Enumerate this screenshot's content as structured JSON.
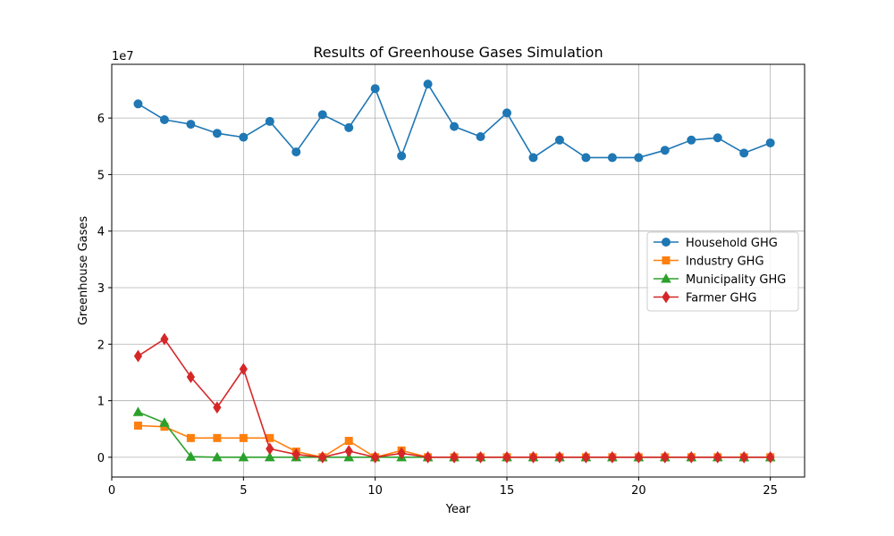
{
  "chart_data": {
    "type": "line",
    "title": "Results of Greenhouse Gases Simulation",
    "xlabel": "Year",
    "ylabel": "Greenhouse Gases",
    "y_offset_label": "1e7",
    "xlim": [
      0,
      26.3
    ],
    "ylim": [
      -0.35,
      6.95
    ],
    "y_scale_note": "values in units of 1e7",
    "x_ticks": [
      0,
      5,
      10,
      15,
      20,
      25
    ],
    "x_tick_labels": [
      "0",
      "5",
      "10",
      "15",
      "20",
      "25"
    ],
    "y_ticks": [
      0,
      1,
      2,
      3,
      4,
      5,
      6
    ],
    "y_tick_labels": [
      "0",
      "1",
      "2",
      "3",
      "4",
      "5",
      "6"
    ],
    "grid": true,
    "legend_position": "center-right",
    "x": [
      1,
      2,
      3,
      4,
      5,
      6,
      7,
      8,
      9,
      10,
      11,
      12,
      13,
      14,
      15,
      16,
      17,
      18,
      19,
      20,
      21,
      22,
      23,
      24,
      25
    ],
    "series": [
      {
        "name": "Household GHG",
        "color": "#1f77b4",
        "marker": "circle",
        "values": [
          6.25,
          5.97,
          5.89,
          5.73,
          5.66,
          5.94,
          5.4,
          6.06,
          5.83,
          6.52,
          5.33,
          6.6,
          5.85,
          5.67,
          6.09,
          5.3,
          5.61,
          5.3,
          5.3,
          5.3,
          5.43,
          5.61,
          5.65,
          5.38,
          5.56
        ]
      },
      {
        "name": "Industry GHG",
        "color": "#ff7f0e",
        "marker": "square",
        "values": [
          0.56,
          0.54,
          0.34,
          0.34,
          0.34,
          0.34,
          0.1,
          0.0,
          0.29,
          0.0,
          0.12,
          0.0,
          0.0,
          0.0,
          0.0,
          0.0,
          0.0,
          0.0,
          0.0,
          0.0,
          0.0,
          0.0,
          0.0,
          0.0,
          0.0
        ]
      },
      {
        "name": "Municipality GHG",
        "color": "#2ca02c",
        "marker": "triangle",
        "values": [
          0.8,
          0.61,
          0.01,
          0.0,
          0.0,
          0.0,
          0.0,
          0.0,
          0.0,
          0.0,
          0.0,
          0.0,
          0.0,
          0.0,
          0.0,
          0.0,
          0.0,
          0.0,
          0.0,
          0.0,
          0.0,
          0.0,
          0.0,
          0.0,
          0.0
        ]
      },
      {
        "name": "Farmer GHG",
        "color": "#d62728",
        "marker": "diamond",
        "values": [
          1.79,
          2.09,
          1.42,
          0.88,
          1.56,
          0.15,
          0.05,
          0.0,
          0.11,
          0.0,
          0.07,
          0.0,
          0.0,
          0.0,
          0.0,
          0.0,
          0.0,
          0.0,
          0.0,
          0.0,
          0.0,
          0.0,
          0.0,
          0.0,
          0.0
        ]
      }
    ]
  }
}
